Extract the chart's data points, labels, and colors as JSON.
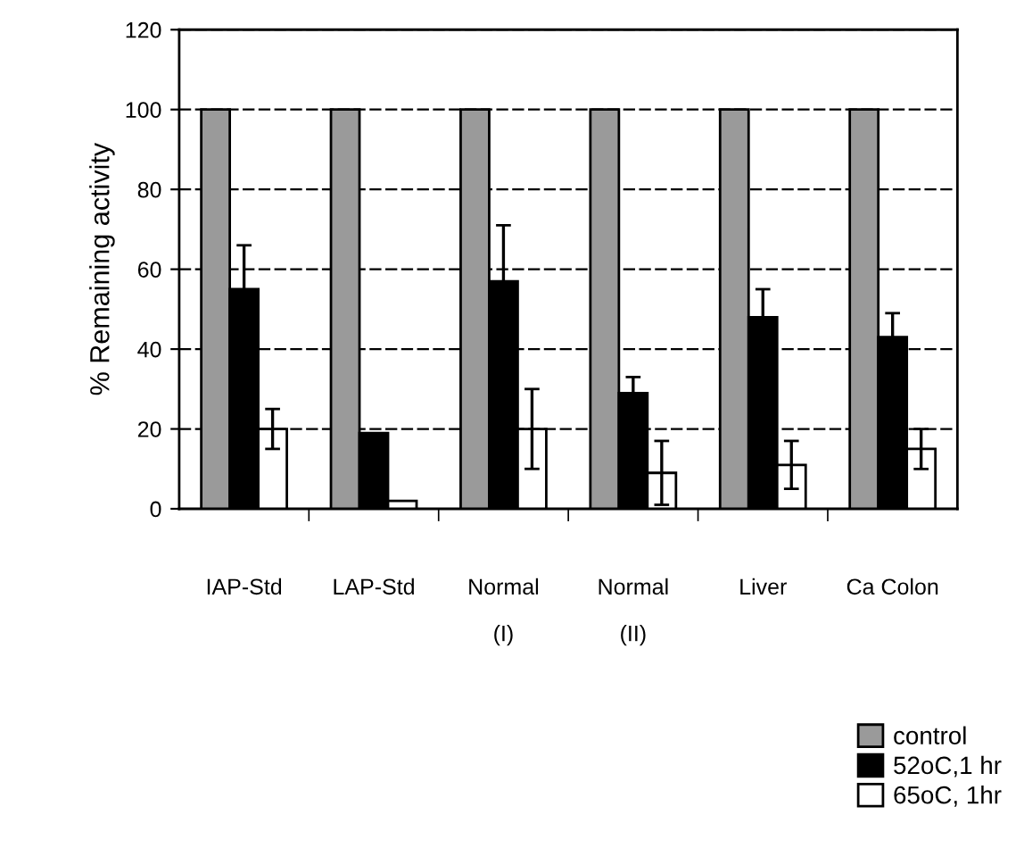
{
  "chart_data": {
    "type": "bar",
    "ylabel": "% Remaining activity",
    "categories": [
      "IAP-Std",
      "LAP-Std",
      "Normal\n(I)",
      "Normal\n(II)",
      "Liver",
      "Ca Colon"
    ],
    "series": [
      {
        "name": "control",
        "color": "#9a9a9a",
        "values": [
          100,
          100,
          100,
          100,
          100,
          100
        ]
      },
      {
        "name": "52oC,1 hr",
        "color": "#000000",
        "values": [
          55,
          19,
          57,
          29,
          48,
          43
        ],
        "errors": [
          11,
          null,
          14,
          4,
          7,
          6
        ]
      },
      {
        "name": "65oC, 1hr",
        "color": "#ffffff",
        "values": [
          20,
          2,
          20,
          9,
          11,
          15
        ],
        "errors": [
          5,
          null,
          10,
          8,
          6,
          5
        ]
      }
    ],
    "ylim": [
      0,
      120
    ],
    "yticks": [
      0,
      20,
      40,
      60,
      80,
      100,
      120
    ],
    "grid": "y",
    "legend": "bottom right"
  }
}
